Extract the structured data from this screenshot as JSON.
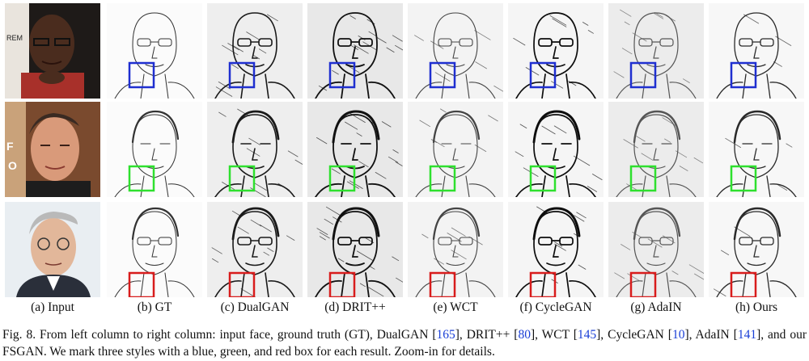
{
  "columns": [
    {
      "key": "input",
      "label": "(a) Input"
    },
    {
      "key": "gt",
      "label": "(b) GT"
    },
    {
      "key": "dualgan",
      "label": "(c) DualGAN"
    },
    {
      "key": "drit",
      "label": "(d) DRIT++"
    },
    {
      "key": "wct",
      "label": "(e) WCT"
    },
    {
      "key": "cyclegan",
      "label": "(f) CycleGAN"
    },
    {
      "key": "adain",
      "label": "(g) AdaIN"
    },
    {
      "key": "ours",
      "label": "(h) Ours"
    }
  ],
  "rows": [
    {
      "style": "row-1",
      "box_color": "#1f2fd0"
    },
    {
      "style": "row-2",
      "box_color": "#2ee02e"
    },
    {
      "style": "row-3",
      "box_color": "#d81c1c"
    }
  ],
  "caption": {
    "part1": "Fig. 8. From left column to right column: input face, ground truth (GT), DualGAN [",
    "ref1": "165",
    "part2": "], DRIT++ [",
    "ref2": "80",
    "part3": "], WCT [",
    "ref3": "145",
    "part4": "], CycleGAN [",
    "ref4": "10",
    "part5": "], AdaIN [",
    "ref5": "141",
    "part6": "], and our FSGAN. We mark three styles with a blue, green, and red box for each result. Zoom-in for details."
  }
}
